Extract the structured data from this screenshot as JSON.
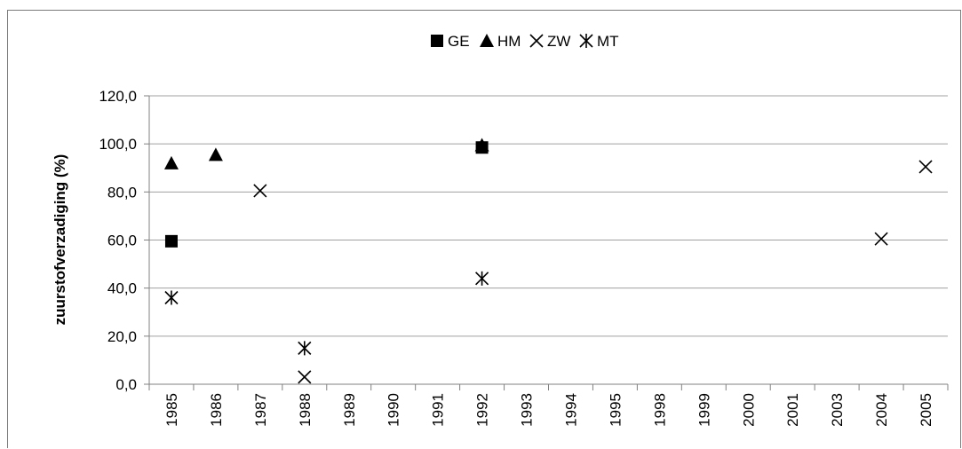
{
  "chart_data": {
    "type": "scatter",
    "title": "",
    "xlabel": "",
    "ylabel": "zuurstofverzadiging (%)",
    "categories": [
      "1985",
      "1986",
      "1987",
      "1988",
      "1989",
      "1990",
      "1991",
      "1992",
      "1993",
      "1994",
      "1995",
      "1998",
      "1999",
      "2000",
      "2001",
      "2003",
      "2004",
      "2005"
    ],
    "ylim": [
      0,
      120
    ],
    "yticks": [
      "0,0",
      "20,0",
      "40,0",
      "60,0",
      "80,0",
      "100,0",
      "120,0"
    ],
    "grid": "horizontal",
    "legend_position": "top",
    "series": [
      {
        "name": "GE",
        "marker": "square",
        "points": [
          {
            "x": "1985",
            "y": 59.5
          },
          {
            "x": "1992",
            "y": 98.5
          }
        ]
      },
      {
        "name": "HM",
        "marker": "triangle",
        "points": [
          {
            "x": "1985",
            "y": 92.0
          },
          {
            "x": "1986",
            "y": 95.5
          },
          {
            "x": "1992",
            "y": 99.5
          }
        ]
      },
      {
        "name": "ZW",
        "marker": "x",
        "points": [
          {
            "x": "1987",
            "y": 80.5
          },
          {
            "x": "1988",
            "y": 3.0
          },
          {
            "x": "2004",
            "y": 60.5
          },
          {
            "x": "2005",
            "y": 90.5
          }
        ]
      },
      {
        "name": "MT",
        "marker": "asterisk",
        "points": [
          {
            "x": "1985",
            "y": 36.0
          },
          {
            "x": "1988",
            "y": 15.0
          },
          {
            "x": "1992",
            "y": 44.0
          }
        ]
      }
    ],
    "colors": {
      "markers": "#000000",
      "grid": "#a0a0a0",
      "axis": "#808080"
    }
  }
}
